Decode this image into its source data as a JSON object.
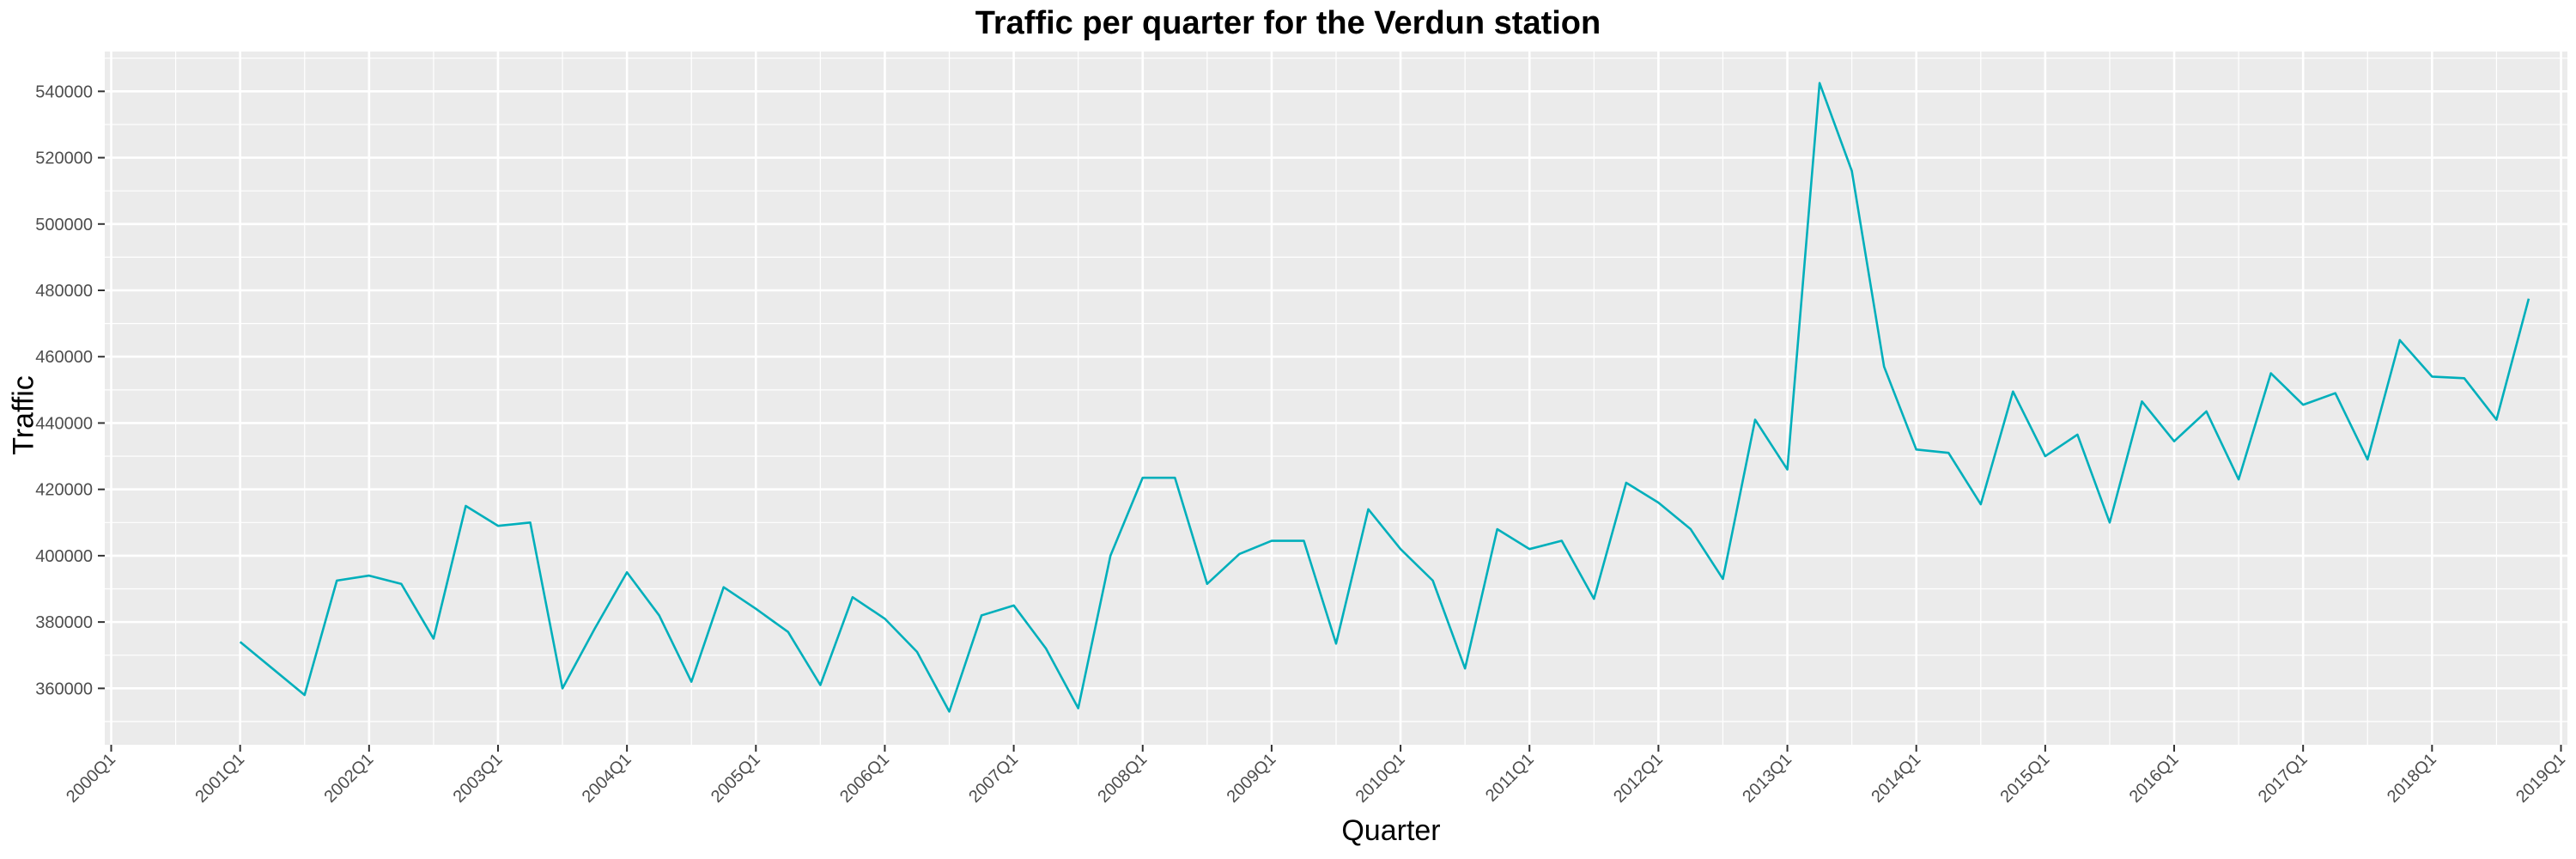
{
  "chart_data": {
    "type": "line",
    "title": "Traffic per quarter for the Verdun station",
    "xlabel": "Quarter",
    "ylabel": "Traffic",
    "x_tick_labels": [
      "2000Q1",
      "2001Q1",
      "2002Q1",
      "2003Q1",
      "2004Q1",
      "2005Q1",
      "2006Q1",
      "2007Q1",
      "2008Q1",
      "2009Q1",
      "2010Q1",
      "2011Q1",
      "2012Q1",
      "2013Q1",
      "2014Q1",
      "2015Q1",
      "2016Q1",
      "2017Q1",
      "2018Q1",
      "2019Q1"
    ],
    "y_ticks": [
      360000,
      380000,
      400000,
      420000,
      440000,
      460000,
      480000,
      500000,
      520000,
      540000
    ],
    "ylim": [
      343000,
      552000
    ],
    "xlim": [
      "2000Q1",
      "2019Q1"
    ],
    "grid": true,
    "colors": {
      "line": "#00AFBB",
      "panel": "#EBEBEB",
      "grid": "#FFFFFF"
    },
    "series": [
      {
        "x": [
          "2001Q1",
          "2001Q2",
          "2001Q3",
          "2001Q4",
          "2002Q1",
          "2002Q2",
          "2002Q3",
          "2002Q4",
          "2003Q1",
          "2003Q2",
          "2003Q3",
          "2003Q4",
          "2004Q1",
          "2004Q2",
          "2004Q3",
          "2004Q4",
          "2005Q1",
          "2005Q2",
          "2005Q3",
          "2005Q4",
          "2006Q1",
          "2006Q2",
          "2006Q3",
          "2006Q4",
          "2007Q1",
          "2007Q2",
          "2007Q3",
          "2007Q4",
          "2008Q1",
          "2008Q2",
          "2008Q3",
          "2008Q4",
          "2009Q1",
          "2009Q2",
          "2009Q3",
          "2009Q4",
          "2010Q1",
          "2010Q2",
          "2010Q3",
          "2010Q4",
          "2011Q1",
          "2011Q2",
          "2011Q3",
          "2011Q4",
          "2012Q1",
          "2012Q2",
          "2012Q3",
          "2012Q4",
          "2013Q1",
          "2013Q2",
          "2013Q3",
          "2013Q4",
          "2014Q1",
          "2014Q2",
          "2014Q3",
          "2014Q4",
          "2015Q1",
          "2015Q2",
          "2015Q3",
          "2015Q4",
          "2016Q1",
          "2016Q2",
          "2016Q3",
          "2016Q4",
          "2017Q1",
          "2017Q2",
          "2017Q3",
          "2017Q4",
          "2018Q1",
          "2018Q2",
          "2018Q3",
          "2018Q4"
        ],
        "values": [
          374000,
          366000,
          358000,
          392500,
          394000,
          391500,
          375000,
          415000,
          409000,
          410000,
          360000,
          378000,
          395000,
          382000,
          362000,
          390500,
          384000,
          377000,
          361000,
          387500,
          381000,
          371000,
          353000,
          382000,
          385000,
          372000,
          354000,
          400000,
          423500,
          423500,
          391500,
          400500,
          404500,
          404500,
          373500,
          414000,
          402000,
          392500,
          366000,
          408000,
          402000,
          404500,
          387000,
          422000,
          416000,
          408000,
          393000,
          441000,
          426000,
          542500,
          516000,
          457000,
          432000,
          431000,
          415500,
          449500,
          430000,
          436500,
          410000,
          446500,
          434500,
          443500,
          423000,
          455000,
          445500,
          449000,
          429000,
          465000,
          454000,
          453500,
          441000,
          477500
        ]
      }
    ]
  }
}
